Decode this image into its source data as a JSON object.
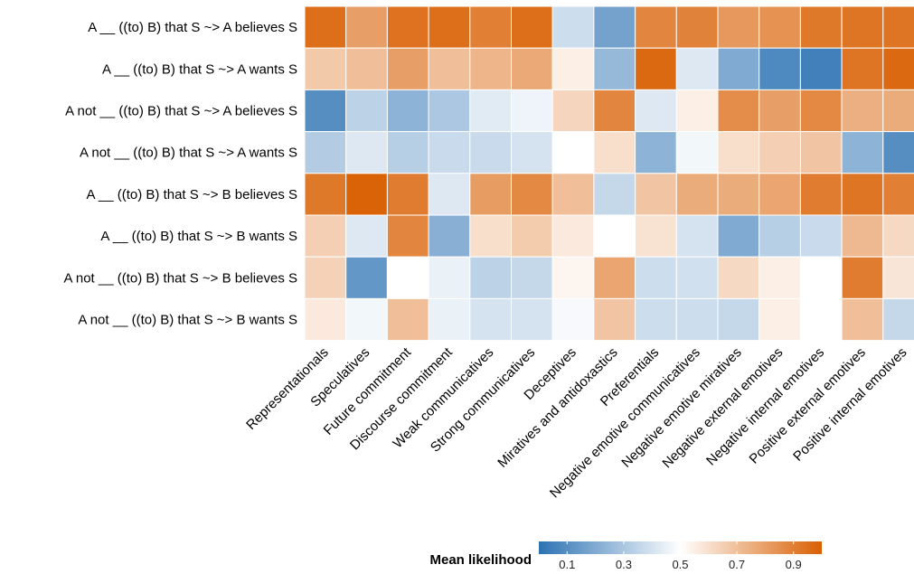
{
  "chart_data": {
    "type": "heatmap",
    "rows": [
      "A __ ((to) B) that S ~> A believes S",
      "A __ ((to) B) that S ~> A wants S",
      "A not __ ((to) B) that S ~> A believes S",
      "A not __ ((to) B) that S ~> A wants S",
      "A __ ((to) B) that S ~> B believes S",
      "A __ ((to) B) that S ~> B wants S",
      "A not __ ((to) B) that S ~> B believes S",
      "A not __ ((to) B) that S ~> B wants S"
    ],
    "columns": [
      "Representationals",
      "Speculatives",
      "Future commitment",
      "Discourse commitment",
      "Weak communicatives",
      "Strong communicatives",
      "Deceptives",
      "Miratives and antidoxastics",
      "Preferentials",
      "Negative emotive communicatives",
      "Negative emotive miratives",
      "Negative external emotives",
      "Negative internal emotives",
      "Positive external emotives",
      "Positive internal emotives"
    ],
    "values": [
      [
        0.95,
        0.8,
        0.94,
        0.95,
        0.9,
        0.95,
        0.38,
        0.17,
        0.88,
        0.89,
        0.82,
        0.84,
        0.92,
        0.93,
        0.93
      ],
      [
        0.67,
        0.7,
        0.8,
        0.7,
        0.73,
        0.77,
        0.55,
        0.25,
        0.97,
        0.42,
        0.2,
        0.08,
        0.05,
        0.93,
        0.97
      ],
      [
        0.1,
        0.34,
        0.23,
        0.3,
        0.43,
        0.46,
        0.63,
        0.88,
        0.42,
        0.55,
        0.86,
        0.8,
        0.87,
        0.75,
        0.76
      ],
      [
        0.32,
        0.42,
        0.33,
        0.37,
        0.37,
        0.4,
        0.5,
        0.6,
        0.23,
        0.47,
        0.6,
        0.65,
        0.68,
        0.23,
        0.1
      ],
      [
        0.92,
        0.99,
        0.91,
        0.42,
        0.81,
        0.87,
        0.7,
        0.36,
        0.68,
        0.76,
        0.76,
        0.78,
        0.91,
        0.93,
        0.9
      ],
      [
        0.65,
        0.42,
        0.88,
        0.22,
        0.6,
        0.66,
        0.57,
        0.5,
        0.59,
        0.4,
        0.2,
        0.33,
        0.37,
        0.72,
        0.62
      ],
      [
        0.64,
        0.13,
        0.5,
        0.45,
        0.34,
        0.36,
        0.53,
        0.78,
        0.38,
        0.39,
        0.62,
        0.55,
        0.5,
        0.91,
        0.58
      ],
      [
        0.57,
        0.47,
        0.7,
        0.45,
        0.4,
        0.4,
        0.48,
        0.68,
        0.38,
        0.38,
        0.36,
        0.55,
        0.5,
        0.7,
        0.36
      ]
    ],
    "colorbar": {
      "title": "Mean likelihood",
      "min": 0.0,
      "max": 1.0,
      "ticks": [
        "0.1",
        "0.3",
        "0.5",
        "0.7",
        "0.9"
      ],
      "tick_values": [
        0.1,
        0.3,
        0.5,
        0.7,
        0.9
      ],
      "low_color": "#2c72b3",
      "mid_color": "#ffffff",
      "high_color": "#d95f02"
    },
    "grid_lines": "white"
  }
}
